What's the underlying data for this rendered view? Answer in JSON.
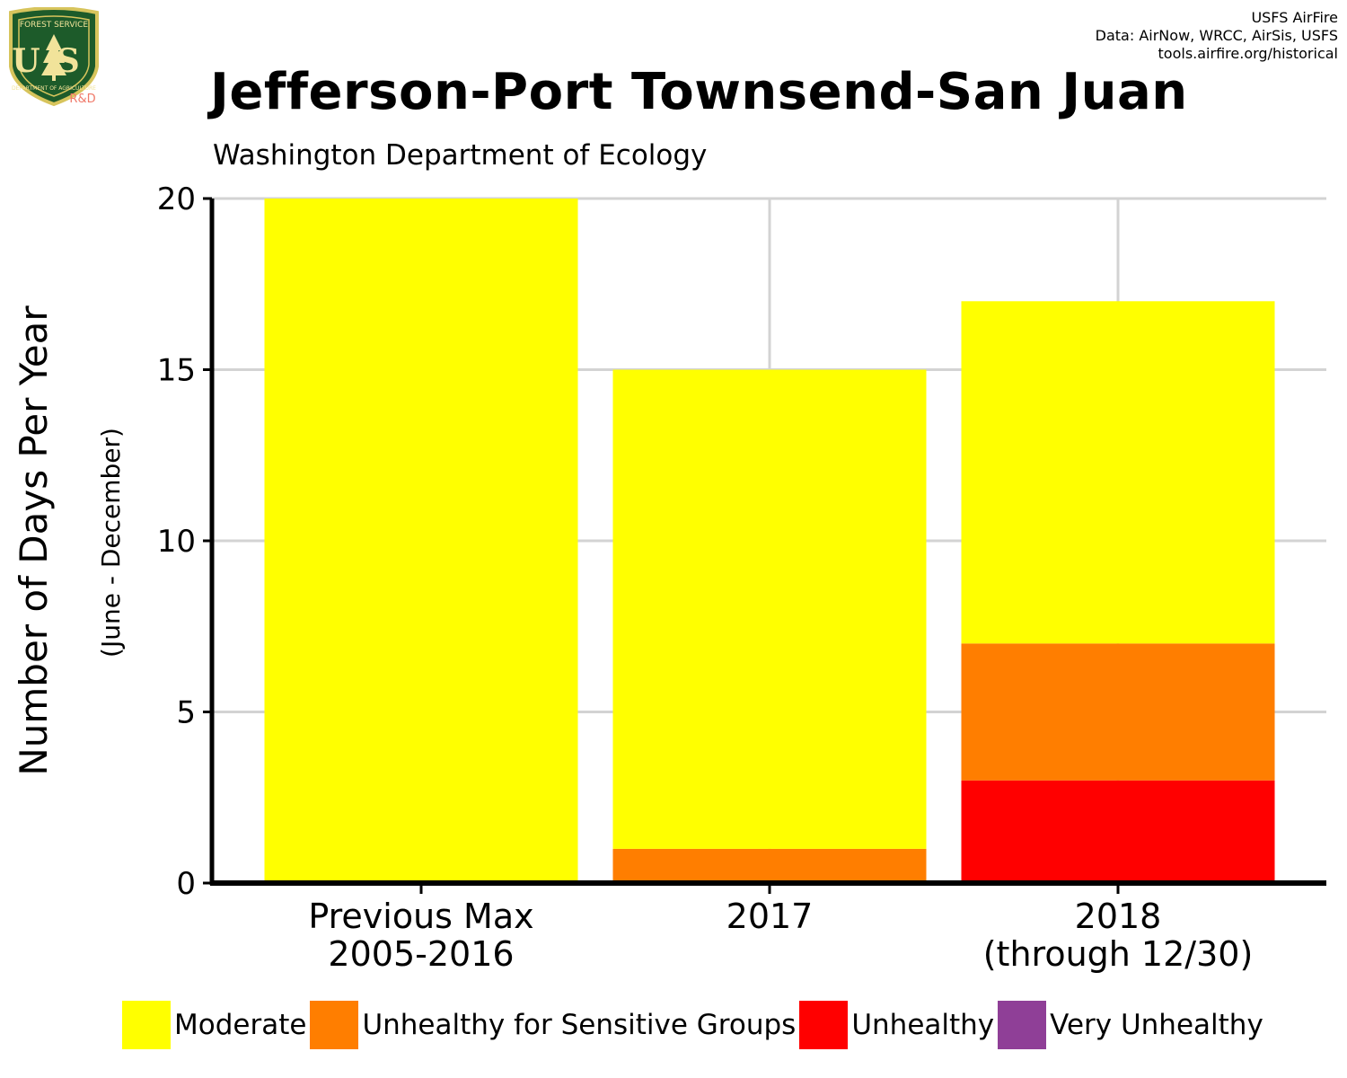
{
  "header": {
    "credits": [
      "USFS AirFire",
      "Data: AirNow, WRCC, AirSis, USFS",
      "tools.airfire.org/historical"
    ],
    "logo": {
      "shield_top": "FOREST SERVICE",
      "shield_letters": "US",
      "shield_bottom": "DEPARTMENT OF AGRICULTURE",
      "rd": "R&D"
    }
  },
  "chart_data": {
    "type": "bar",
    "stacked": true,
    "title": "Jefferson-Port Townsend-San Juan",
    "subtitle": "Washington Department of Ecology",
    "ylabel": "Number of Days Per Year",
    "ylabel_sub": "(June - December)",
    "xlabel": "",
    "categories": [
      [
        "Previous Max",
        "2005-2016"
      ],
      [
        "2017"
      ],
      [
        "2018",
        "(through 12/30)"
      ]
    ],
    "ylim": [
      0,
      20
    ],
    "yticks": [
      0,
      5,
      10,
      15,
      20
    ],
    "grid": true,
    "legend_position": "bottom",
    "series": [
      {
        "name": "Moderate",
        "color": "#ffff00",
        "values": [
          20,
          14,
          10
        ]
      },
      {
        "name": "Unhealthy for Sensitive Groups",
        "color": "#ff7e00",
        "values": [
          0,
          1,
          4
        ]
      },
      {
        "name": "Unhealthy",
        "color": "#ff0000",
        "values": [
          0,
          0,
          3
        ]
      },
      {
        "name": "Very Unhealthy",
        "color": "#8f3f97",
        "values": [
          0,
          0,
          0
        ]
      }
    ]
  }
}
